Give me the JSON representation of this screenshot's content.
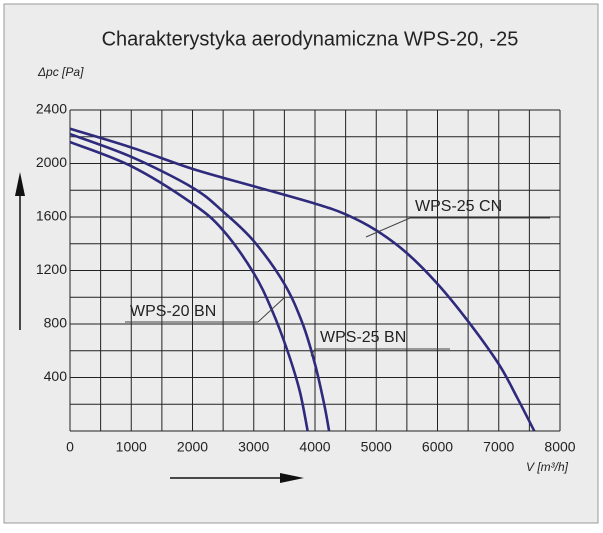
{
  "chart_data": {
    "type": "line",
    "title": "Charakterystyka aerodynamiczna  WPS-20, -25",
    "y_label": "Δpc [Pa]",
    "x_label": "V [m³/h]",
    "xlim": [
      0,
      8000
    ],
    "xticks": [
      0,
      1000,
      2000,
      3000,
      4000,
      5000,
      6000,
      7000,
      8000
    ],
    "ylim": [
      0,
      2400
    ],
    "yticks": [
      400,
      800,
      1200,
      1600,
      2000,
      2400
    ],
    "grid": true,
    "series": [
      {
        "name": "WPS-25 CN",
        "color": "#2e2a7c",
        "x": [
          0,
          1000,
          2000,
          3000,
          4000,
          4500,
          5000,
          5500,
          6000,
          6500,
          7000,
          7300,
          7580
        ],
        "values": [
          2260,
          2120,
          1960,
          1830,
          1700,
          1620,
          1500,
          1330,
          1100,
          820,
          500,
          250,
          0
        ]
      },
      {
        "name": "WPS-25 BN",
        "color": "#2e2a7c",
        "x": [
          0,
          1000,
          2000,
          2500,
          3000,
          3500,
          3800,
          4000,
          4150,
          4230
        ],
        "values": [
          2220,
          2050,
          1820,
          1640,
          1420,
          1100,
          800,
          500,
          200,
          0
        ]
      },
      {
        "name": "WPS-20 BN",
        "color": "#2e2a7c",
        "x": [
          0,
          1000,
          2000,
          2500,
          3000,
          3300,
          3550,
          3750,
          3880
        ],
        "values": [
          2160,
          1980,
          1700,
          1500,
          1180,
          900,
          600,
          300,
          0
        ]
      }
    ]
  }
}
